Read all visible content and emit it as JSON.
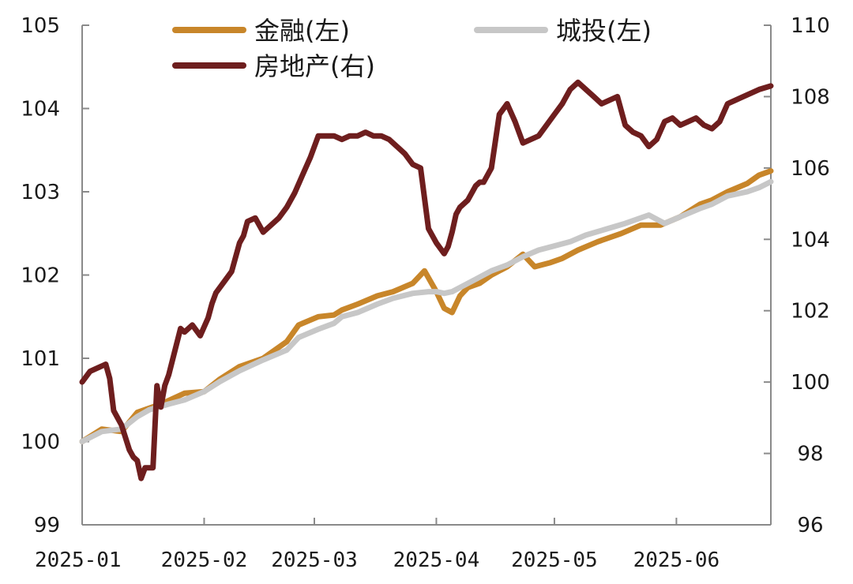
{
  "chart_data": {
    "type": "line",
    "x_tick_labels": [
      "2025-01",
      "2025-02",
      "2025-03",
      "2025-04",
      "2025-05",
      "2025-06"
    ],
    "x_range": [
      0,
      175
    ],
    "x_ticks": [
      0,
      31,
      59,
      90,
      120,
      151
    ],
    "left_axis": {
      "ylim": [
        99,
        105
      ],
      "ticks": [
        "99",
        "100",
        "101",
        "102",
        "103",
        "104",
        "105"
      ]
    },
    "right_axis": {
      "ylim": [
        96,
        110
      ],
      "ticks": [
        "96",
        "98",
        "100",
        "102",
        "104",
        "106",
        "108",
        "110"
      ]
    },
    "grid": false,
    "legend_position": "top",
    "series": [
      {
        "name": "金融(左)",
        "axis": "left",
        "color": "#C8862A",
        "x": [
          0,
          5,
          10,
          14,
          17,
          20,
          26,
          31,
          35,
          40,
          46,
          52,
          55,
          60,
          64,
          66,
          70,
          75,
          79,
          84,
          87,
          90,
          92,
          94,
          96,
          98,
          101,
          104,
          108,
          112,
          115,
          119,
          122,
          126,
          131,
          137,
          142,
          147,
          152,
          157,
          160,
          164,
          169,
          172,
          175
        ],
        "values": [
          100.0,
          100.15,
          100.12,
          100.35,
          100.4,
          100.45,
          100.58,
          100.6,
          100.75,
          100.9,
          101.0,
          101.2,
          101.4,
          101.5,
          101.52,
          101.58,
          101.65,
          101.75,
          101.8,
          101.9,
          102.05,
          101.8,
          101.6,
          101.55,
          101.75,
          101.85,
          101.9,
          102.0,
          102.1,
          102.25,
          102.1,
          102.15,
          102.2,
          102.3,
          102.4,
          102.5,
          102.6,
          102.6,
          102.7,
          102.85,
          102.9,
          103.0,
          103.1,
          103.2,
          103.25
        ]
      },
      {
        "name": "城投(左)",
        "axis": "left",
        "color": "#C7C7C7",
        "x": [
          0,
          5,
          10,
          14,
          17,
          22,
          26,
          31,
          35,
          40,
          46,
          52,
          55,
          60,
          64,
          66,
          70,
          75,
          79,
          84,
          88,
          90,
          92,
          94,
          96,
          100,
          104,
          108,
          112,
          116,
          120,
          124,
          128,
          133,
          138,
          144,
          148,
          152,
          157,
          160,
          164,
          169,
          172,
          175
        ],
        "values": [
          100.0,
          100.12,
          100.15,
          100.3,
          100.38,
          100.45,
          100.5,
          100.6,
          100.72,
          100.85,
          100.98,
          101.1,
          101.25,
          101.35,
          101.42,
          101.5,
          101.55,
          101.65,
          101.72,
          101.78,
          101.8,
          101.8,
          101.78,
          101.8,
          101.85,
          101.95,
          102.05,
          102.12,
          102.22,
          102.3,
          102.35,
          102.4,
          102.48,
          102.55,
          102.62,
          102.72,
          102.62,
          102.7,
          102.8,
          102.85,
          102.95,
          103.0,
          103.05,
          103.12
        ]
      },
      {
        "name": "房地产(右)",
        "axis": "right",
        "color": "#6E1E1E",
        "x": [
          0,
          2,
          4,
          6,
          7,
          8,
          10,
          12,
          13,
          14,
          15,
          16,
          17,
          18,
          19,
          20,
          21,
          22,
          25,
          26,
          28,
          30,
          32,
          33,
          34,
          36,
          38,
          40,
          41,
          42,
          44,
          46,
          48,
          49,
          50,
          52,
          54,
          56,
          58,
          60,
          62,
          64,
          66,
          68,
          70,
          72,
          74,
          76,
          78,
          80,
          82,
          84,
          86,
          88,
          90,
          92,
          93,
          94,
          95,
          96,
          98,
          100,
          101,
          102,
          104,
          106,
          108,
          110,
          112,
          114,
          116,
          118,
          120,
          122,
          124,
          126,
          128,
          130,
          132,
          134,
          136,
          138,
          140,
          142,
          144,
          146,
          148,
          150,
          152,
          154,
          156,
          158,
          160,
          162,
          164,
          166,
          168,
          170,
          172,
          175
        ],
        "values": [
          100.0,
          100.3,
          100.4,
          100.5,
          100.1,
          99.2,
          98.8,
          98.1,
          97.9,
          97.8,
          97.3,
          97.6,
          97.6,
          97.6,
          99.9,
          99.3,
          99.9,
          100.2,
          101.5,
          101.4,
          101.6,
          101.3,
          101.8,
          102.2,
          102.5,
          102.8,
          103.1,
          103.9,
          104.1,
          104.5,
          104.6,
          104.2,
          104.4,
          104.5,
          104.6,
          104.9,
          105.3,
          105.8,
          106.3,
          106.9,
          106.9,
          106.9,
          106.8,
          106.9,
          106.9,
          107.0,
          106.9,
          106.9,
          106.8,
          106.6,
          106.4,
          106.1,
          106.0,
          104.3,
          103.9,
          103.6,
          103.8,
          104.2,
          104.7,
          104.9,
          105.1,
          105.5,
          105.6,
          105.6,
          106.0,
          107.5,
          107.8,
          107.3,
          106.7,
          106.8,
          106.9,
          107.2,
          107.5,
          107.8,
          108.2,
          108.4,
          108.2,
          108.0,
          107.8,
          107.9,
          108.0,
          107.2,
          107.0,
          106.9,
          106.6,
          106.8,
          107.3,
          107.4,
          107.2,
          107.3,
          107.4,
          107.2,
          107.1,
          107.3,
          107.8,
          107.9,
          108.0,
          108.1,
          108.2,
          108.3
        ]
      }
    ]
  }
}
